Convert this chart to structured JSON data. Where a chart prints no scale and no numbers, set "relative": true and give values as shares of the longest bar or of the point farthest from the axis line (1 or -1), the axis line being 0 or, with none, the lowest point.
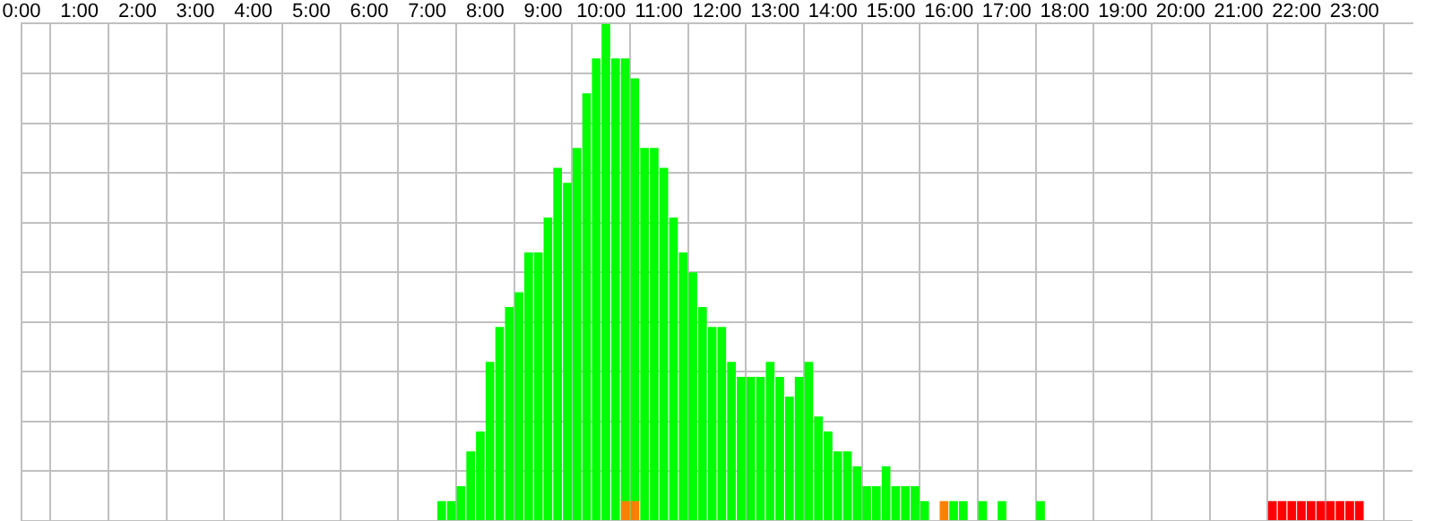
{
  "chart_data": {
    "type": "bar",
    "relative": true,
    "grid": true,
    "legend": false,
    "tick_labels": "x",
    "xlim": [
      0,
      24
    ],
    "xticks": [
      {
        "value": 0,
        "label": "0:00"
      },
      {
        "value": 1,
        "label": "1:00"
      },
      {
        "value": 2,
        "label": "2:00"
      },
      {
        "value": 3,
        "label": "3:00"
      },
      {
        "value": 4,
        "label": "4:00"
      },
      {
        "value": 5,
        "label": "5:00"
      },
      {
        "value": 6,
        "label": "6:00"
      },
      {
        "value": 7,
        "label": "7:00"
      },
      {
        "value": 8,
        "label": "8:00"
      },
      {
        "value": 9,
        "label": "9:00"
      },
      {
        "value": 10,
        "label": "10:00"
      },
      {
        "value": 11,
        "label": "11:00"
      },
      {
        "value": 12,
        "label": "12:00"
      },
      {
        "value": 13,
        "label": "13:00"
      },
      {
        "value": 14,
        "label": "14:00"
      },
      {
        "value": 15,
        "label": "15:00"
      },
      {
        "value": 16,
        "label": "16:00"
      },
      {
        "value": 17,
        "label": "17:00"
      },
      {
        "value": 18,
        "label": "18:00"
      },
      {
        "value": 19,
        "label": "19:00"
      },
      {
        "value": 20,
        "label": "20:00"
      },
      {
        "value": 21,
        "label": "21:00"
      },
      {
        "value": 22,
        "label": "22:00"
      },
      {
        "value": 23,
        "label": "23:00"
      }
    ],
    "series": [
      {
        "color": "#ff7f00",
        "x": [
          10.417,
          10.583,
          15.917
        ],
        "values": [
          0.04,
          0.04,
          0.04
        ]
      },
      {
        "color": "#00ff00",
        "x": [
          7.25,
          7.417,
          7.583,
          7.75,
          7.917,
          8.083,
          8.25,
          8.417,
          8.583,
          8.75,
          8.917,
          9.083,
          9.25,
          9.417,
          9.583,
          9.75,
          9.917,
          10.083,
          10.25,
          10.417,
          10.583,
          10.75,
          10.917,
          11.083,
          11.25,
          11.417,
          11.583,
          11.75,
          11.917,
          12.083,
          12.25,
          12.417,
          12.583,
          12.75,
          12.917,
          13.083,
          13.25,
          13.417,
          13.583,
          13.75,
          13.917,
          14.083,
          14.25,
          14.417,
          14.583,
          14.75,
          14.917,
          15.083,
          15.25,
          15.417,
          15.583,
          16.083,
          16.25,
          16.583,
          16.917,
          17.583
        ],
        "values": [
          0.04,
          0.04,
          0.07,
          0.14,
          0.18,
          0.32,
          0.39,
          0.43,
          0.46,
          0.54,
          0.54,
          0.61,
          0.71,
          0.68,
          0.75,
          0.86,
          0.93,
          1,
          0.93,
          0.93,
          0.89,
          0.75,
          0.75,
          0.71,
          0.61,
          0.54,
          0.5,
          0.43,
          0.39,
          0.39,
          0.32,
          0.29,
          0.29,
          0.29,
          0.32,
          0.29,
          0.25,
          0.29,
          0.32,
          0.21,
          0.18,
          0.14,
          0.14,
          0.11,
          0.07,
          0.07,
          0.11,
          0.07,
          0.07,
          0.07,
          0.04,
          0.04,
          0.04,
          0.04,
          0.04,
          0.04
        ]
      },
      {
        "color": "#ff0000",
        "x": [
          21.583,
          21.75,
          21.917,
          22.083,
          22.25,
          22.417,
          22.583,
          22.75,
          22.917,
          23.083
        ],
        "values": [
          0.04,
          0.04,
          0.04,
          0.04,
          0.04,
          0.04,
          0.04,
          0.04,
          0.04,
          0.04
        ]
      }
    ]
  }
}
